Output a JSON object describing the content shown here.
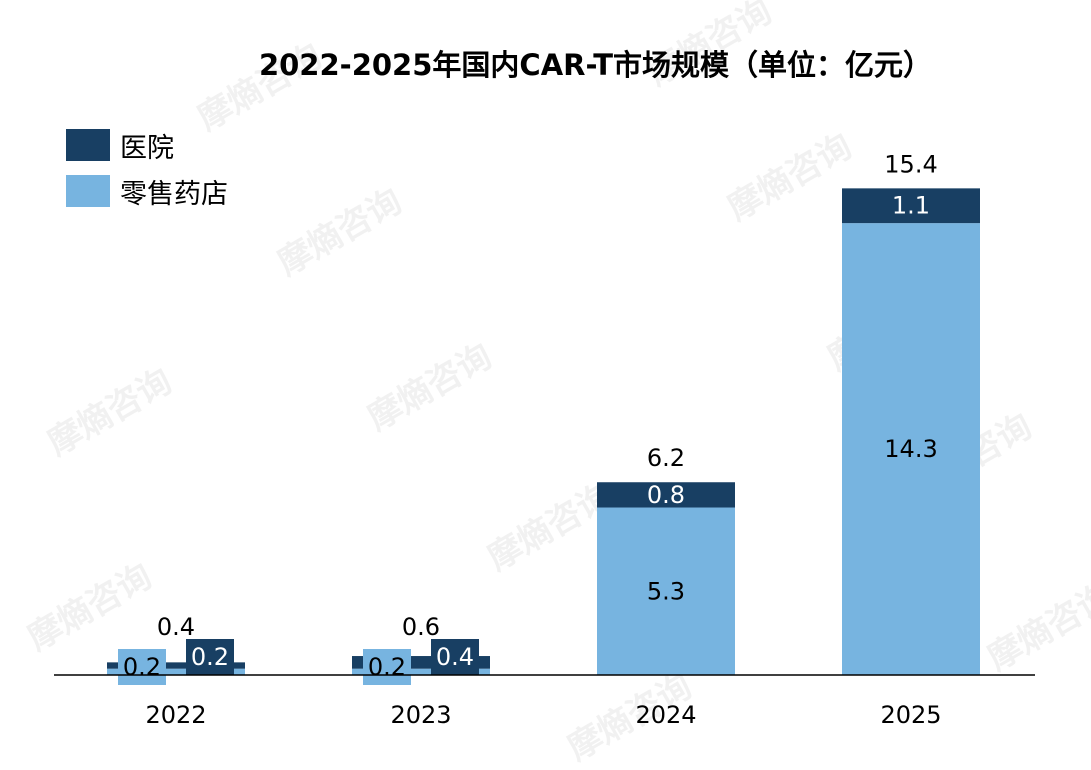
{
  "title": "2022-2025年国内CAR-T市场规模（单位：亿元）",
  "watermark": "摩熵咨询",
  "colors": {
    "hospital": "#183f63",
    "retail": "#77b4e0",
    "axis": "#000000"
  },
  "chart_data": {
    "type": "bar",
    "stacked": true,
    "title": "2022-2025年国内CAR-T市场规模（单位：亿元）",
    "xlabel": "",
    "ylabel": "",
    "categories": [
      "2022",
      "2023",
      "2024",
      "2025"
    ],
    "series": [
      {
        "name": "零售药店",
        "values": [
          0.2,
          0.2,
          5.3,
          14.3
        ],
        "labels": [
          "0.2",
          "0.2",
          "5.3",
          "14.3"
        ]
      },
      {
        "name": "医院",
        "values": [
          0.2,
          0.4,
          0.8,
          1.1
        ],
        "labels": [
          "0.2",
          "0.4",
          "0.8",
          "1.1"
        ]
      }
    ],
    "totals": [
      "0.4",
      "0.6",
      "6.2",
      "15.4"
    ],
    "legend_order": [
      "医院",
      "零售药店"
    ],
    "legend_position": "top-left",
    "grid": false,
    "ylim": [
      0,
      16
    ]
  }
}
